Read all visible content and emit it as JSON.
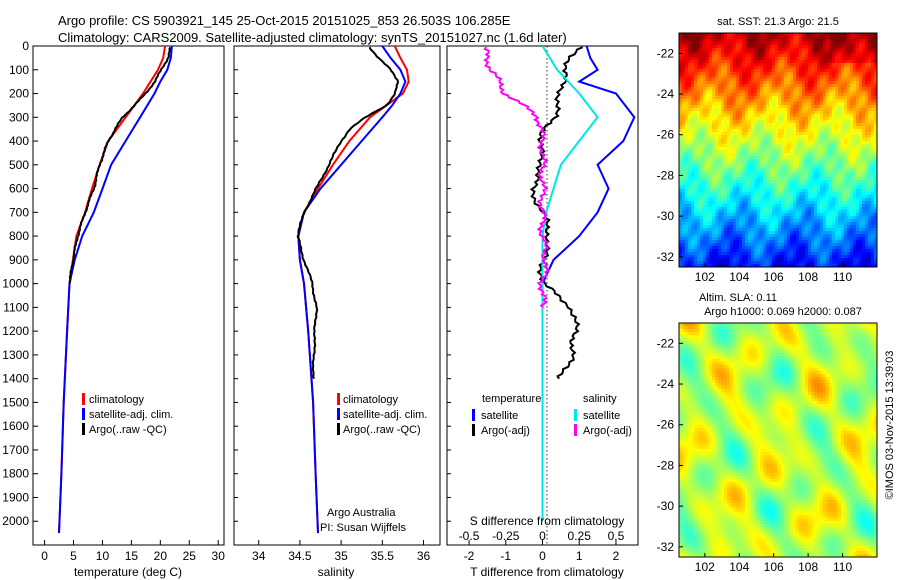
{
  "header": {
    "line1": "Argo profile: CS 5903921_145 25-Oct-2015 20151025_853 26.503S 106.285E",
    "line2": "Climatology: CARS2009. Satellite-adjusted climatology: synTS_20151027.nc (1.6d later)"
  },
  "side_stamp": "©IMOS 03-Nov-2015 13:39:03",
  "colors": {
    "climatology": "#ff0000",
    "satellite": "#0000ff",
    "argo": "#000000",
    "salinity_satellite": "#00e5e5",
    "salinity_argo": "#ff00ff"
  },
  "chart_data": [
    {
      "type": "line",
      "id": "temperature",
      "xlabel": "temperature (deg C)",
      "xlim": [
        -2,
        31
      ],
      "xticks": [
        0,
        5,
        10,
        15,
        20,
        25,
        30
      ],
      "ylim": [
        2100,
        0
      ],
      "yticks": [
        0,
        100,
        200,
        300,
        400,
        500,
        600,
        700,
        800,
        900,
        1000,
        1100,
        1200,
        1300,
        1400,
        1500,
        1600,
        1700,
        1800,
        1900,
        2000
      ],
      "legend": {
        "position": "lower-center",
        "entries": [
          "climatology",
          "satellite-adj. clim.",
          "Argo(..raw -QC)"
        ]
      },
      "series": [
        {
          "name": "climatology",
          "color": "#ff0000",
          "depth": [
            0,
            50,
            100,
            200,
            300,
            400,
            500,
            600,
            700,
            800,
            900,
            1000,
            1200,
            1500,
            1800,
            2050
          ],
          "values": [
            20.8,
            20.5,
            19.6,
            17.0,
            14.0,
            11.0,
            9.5,
            8.2,
            7.0,
            5.5,
            4.9,
            4.3,
            3.9,
            3.3,
            2.9,
            2.5
          ]
        },
        {
          "name": "satellite-adj. clim.",
          "color": "#0000ff",
          "depth": [
            0,
            50,
            100,
            150,
            200,
            300,
            400,
            500,
            600,
            700,
            800,
            900,
            1000,
            1200,
            1500,
            1800,
            2050
          ],
          "values": [
            22.0,
            21.8,
            21.2,
            20.0,
            19.0,
            16.5,
            14.0,
            11.5,
            10.0,
            8.5,
            6.5,
            5.2,
            4.3,
            3.9,
            3.3,
            2.9,
            2.5
          ]
        },
        {
          "name": "Argo(..raw -QC)",
          "color": "#000000",
          "depth": [
            5,
            50,
            100,
            150,
            200,
            250,
            300,
            350,
            400,
            500,
            600,
            700,
            800,
            900,
            1000
          ],
          "values": [
            21.8,
            21.3,
            20.2,
            19.0,
            17.5,
            15.5,
            13.5,
            12.2,
            11.0,
            9.5,
            8.5,
            7.0,
            5.7,
            4.9,
            4.3
          ]
        }
      ]
    },
    {
      "type": "line",
      "id": "salinity",
      "xlabel": "salinity",
      "xlim": [
        33.7,
        36.2
      ],
      "xticks": [
        34,
        34.5,
        35,
        35.5,
        36
      ],
      "ylim": [
        2100,
        0
      ],
      "legend": {
        "position": "lower-right",
        "entries": [
          "climatology",
          "satellite-adj. clim.",
          "Argo(..raw -QC)"
        ]
      },
      "annotation": [
        "Argo Australia",
        "PI: Susan Wijffels"
      ],
      "series": [
        {
          "name": "climatology",
          "color": "#ff0000",
          "depth": [
            0,
            50,
            100,
            150,
            200,
            250,
            300,
            400,
            500,
            600,
            700,
            800,
            900,
            1000,
            1200,
            1500,
            1800,
            2050
          ],
          "values": [
            35.65,
            35.72,
            35.8,
            35.82,
            35.75,
            35.55,
            35.35,
            35.1,
            34.9,
            34.72,
            34.55,
            34.48,
            34.5,
            34.55,
            34.6,
            34.66,
            34.69,
            34.72
          ]
        },
        {
          "name": "satellite-adj. clim.",
          "color": "#0000ff",
          "depth": [
            0,
            50,
            100,
            150,
            200,
            250,
            300,
            400,
            500,
            600,
            700,
            800,
            900,
            1000,
            1200,
            1500,
            1800,
            2050
          ],
          "values": [
            35.5,
            35.6,
            35.72,
            35.78,
            35.72,
            35.62,
            35.5,
            35.25,
            35.0,
            34.75,
            34.55,
            34.48,
            34.5,
            34.55,
            34.6,
            34.66,
            34.69,
            34.72
          ]
        },
        {
          "name": "Argo(..raw -QC)",
          "color": "#000000",
          "depth": [
            5,
            50,
            100,
            150,
            200,
            250,
            300,
            350,
            400,
            500,
            600,
            700,
            800,
            900,
            1000,
            1100,
            1200,
            1300,
            1400
          ],
          "values": [
            35.35,
            35.45,
            35.6,
            35.7,
            35.65,
            35.55,
            35.3,
            35.1,
            35.0,
            34.85,
            34.7,
            34.55,
            34.47,
            34.55,
            34.65,
            34.7,
            34.68,
            34.67,
            34.66
          ]
        }
      ]
    },
    {
      "type": "line",
      "id": "differences",
      "xlabel": "T difference from climatology",
      "xlabel_top": "S difference from climatology",
      "xlim": [
        -2.6,
        2.6
      ],
      "xticks": [
        -2,
        -1,
        0,
        1,
        2
      ],
      "top_tick_labels": [
        "-0.5",
        "-0.25",
        "0",
        "0.25",
        "0.5"
      ],
      "ylim": [
        2100,
        0
      ],
      "legend": {
        "position": "lower",
        "groups": [
          "temperature",
          "salinity"
        ],
        "entries": [
          "satellite",
          "Argo(-adj)",
          "satellite",
          "Argo(-adj)"
        ]
      },
      "series": [
        {
          "name": "satellite",
          "group": "temperature",
          "color": "#0000ff",
          "depth": [
            0,
            50,
            100,
            150,
            200,
            300,
            400,
            500,
            600,
            700,
            800,
            900,
            1000
          ],
          "values": [
            1.2,
            1.3,
            1.5,
            1.0,
            2.0,
            2.5,
            2.2,
            1.5,
            1.8,
            1.5,
            1.0,
            0.3,
            0.0
          ]
        },
        {
          "name": "Argo(-adj)",
          "group": "temperature",
          "color": "#000000",
          "depth": [
            5,
            50,
            100,
            200,
            300,
            400,
            500,
            600,
            700,
            800,
            900,
            1000,
            1100,
            1200,
            1300,
            1400
          ],
          "values": [
            1.0,
            0.8,
            0.6,
            0.5,
            0.3,
            -0.1,
            0.0,
            -0.3,
            0.0,
            0.2,
            0.0,
            0.0,
            0.8,
            0.9,
            0.8,
            0.5
          ]
        },
        {
          "name": "satellite",
          "group": "salinity",
          "color": "#00e5e5",
          "depth": [
            0,
            100,
            200,
            300,
            400,
            500,
            600,
            700,
            800,
            900,
            1000,
            1200,
            1500,
            1800,
            2000
          ],
          "values": [
            0.0,
            0.4,
            1.0,
            1.5,
            1.0,
            0.5,
            0.3,
            0.1,
            0.0,
            0.0,
            0.0,
            0.0,
            0.0,
            0.0,
            0.0
          ]
        },
        {
          "name": "Argo(-adj)",
          "group": "salinity",
          "color": "#ff00ff",
          "depth": [
            5,
            100,
            200,
            300,
            400,
            500,
            600,
            700,
            800,
            900,
            1000,
            1100
          ],
          "values": [
            -1.6,
            -1.4,
            -1.0,
            -0.1,
            0.0,
            0.0,
            0.0,
            0.0,
            0.0,
            0.1,
            0.0,
            0.0
          ]
        }
      ]
    },
    {
      "type": "heatmap",
      "id": "sst_map",
      "title": "sat. SST: 21.3  Argo: 21.5",
      "xlim": [
        100.5,
        112
      ],
      "ylim": [
        -32.5,
        -21
      ],
      "xticks": [
        102,
        104,
        106,
        108,
        110
      ],
      "yticks": [
        -22,
        -24,
        -26,
        -28,
        -30,
        -32
      ],
      "marker": [
        106.285,
        -26.503
      ]
    },
    {
      "type": "heatmap",
      "id": "sla_map",
      "title_line1": "Altim. SLA: 0.11",
      "title_line2": "Argo h1000: 0.069 h2000: 0.087",
      "xlim": [
        100.5,
        112
      ],
      "ylim": [
        -32.5,
        -21
      ],
      "xticks": [
        102,
        104,
        106,
        108,
        110
      ],
      "yticks": [
        -22,
        -24,
        -26,
        -28,
        -30,
        -32
      ]
    }
  ]
}
